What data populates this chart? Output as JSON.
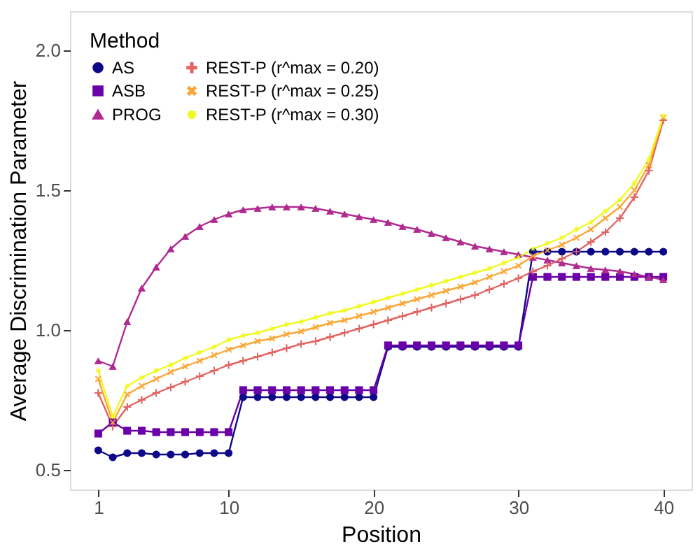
{
  "chart_data": {
    "type": "line",
    "xlabel": "Position",
    "ylabel": "Average Discrimination Parameter",
    "legend_title": "Method",
    "legend": "top left",
    "grid": false,
    "x": [
      1,
      2,
      3,
      4,
      5,
      6,
      7,
      8,
      9,
      10,
      11,
      12,
      13,
      14,
      15,
      16,
      17,
      18,
      19,
      20,
      21,
      22,
      23,
      24,
      25,
      26,
      27,
      28,
      29,
      30,
      31,
      32,
      33,
      34,
      35,
      36,
      37,
      38,
      39,
      40
    ],
    "xlim": [
      -0.95,
      41.95
    ],
    "xticks": [
      1,
      10,
      20,
      30,
      40
    ],
    "ylim": [
      0.43,
      2.14
    ],
    "yticks": [
      0.5,
      {
        "value": 1,
        "label": "1.0"
      },
      1.5,
      {
        "value": 2,
        "label": "2.0"
      }
    ],
    "series": [
      {
        "name": "AS",
        "color": "#0d0887",
        "marker": "circle",
        "values": [
          0.57,
          0.545,
          0.56,
          0.56,
          0.555,
          0.555,
          0.555,
          0.56,
          0.56,
          0.56,
          0.76,
          0.76,
          0.76,
          0.76,
          0.76,
          0.76,
          0.76,
          0.76,
          0.76,
          0.76,
          0.94,
          0.94,
          0.94,
          0.94,
          0.94,
          0.94,
          0.94,
          0.94,
          0.94,
          0.94,
          1.28,
          1.28,
          1.28,
          1.28,
          1.28,
          1.28,
          1.28,
          1.28,
          1.28,
          1.28
        ]
      },
      {
        "name": "ASB",
        "color": "#6a00a8",
        "marker": "square",
        "values": [
          0.63,
          0.67,
          0.64,
          0.64,
          0.635,
          0.635,
          0.635,
          0.635,
          0.635,
          0.635,
          0.785,
          0.785,
          0.785,
          0.785,
          0.785,
          0.785,
          0.785,
          0.785,
          0.785,
          0.785,
          0.945,
          0.945,
          0.945,
          0.945,
          0.945,
          0.945,
          0.945,
          0.945,
          0.945,
          0.945,
          1.19,
          1.19,
          1.19,
          1.19,
          1.19,
          1.19,
          1.19,
          1.19,
          1.19,
          1.19
        ]
      },
      {
        "name": "PROG",
        "color": "#b12a90",
        "marker": "triangle",
        "values": [
          0.89,
          0.87,
          1.03,
          1.15,
          1.225,
          1.29,
          1.335,
          1.37,
          1.395,
          1.415,
          1.43,
          1.435,
          1.44,
          1.44,
          1.44,
          1.435,
          1.425,
          1.415,
          1.405,
          1.395,
          1.385,
          1.37,
          1.36,
          1.345,
          1.33,
          1.315,
          1.3,
          1.29,
          1.28,
          1.27,
          1.26,
          1.25,
          1.24,
          1.23,
          1.22,
          1.215,
          1.21,
          1.2,
          1.19,
          1.18
        ]
      },
      {
        "name": "REST-P (r^max = 0.20)",
        "color": "#e16462",
        "marker": "cross",
        "values": [
          0.775,
          0.655,
          0.725,
          0.75,
          0.775,
          0.795,
          0.815,
          0.835,
          0.855,
          0.875,
          0.89,
          0.905,
          0.92,
          0.935,
          0.95,
          0.96,
          0.975,
          0.99,
          1.005,
          1.02,
          1.035,
          1.05,
          1.065,
          1.08,
          1.095,
          1.11,
          1.125,
          1.145,
          1.165,
          1.185,
          1.21,
          1.23,
          1.255,
          1.28,
          1.315,
          1.35,
          1.4,
          1.475,
          1.57,
          1.75
        ]
      },
      {
        "name": "REST-P (r^max = 0.25)",
        "color": "#fca636",
        "marker": "x",
        "values": [
          0.825,
          0.67,
          0.77,
          0.8,
          0.825,
          0.85,
          0.87,
          0.89,
          0.91,
          0.93,
          0.945,
          0.96,
          0.97,
          0.985,
          0.995,
          1.01,
          1.025,
          1.035,
          1.05,
          1.065,
          1.08,
          1.095,
          1.11,
          1.125,
          1.14,
          1.155,
          1.17,
          1.19,
          1.21,
          1.23,
          1.265,
          1.285,
          1.305,
          1.33,
          1.36,
          1.4,
          1.44,
          1.5,
          1.59,
          1.76
        ]
      },
      {
        "name": "REST-P (r^max = 0.30)",
        "color": "#f0f921",
        "marker": "star",
        "values": [
          0.855,
          0.69,
          0.8,
          0.83,
          0.855,
          0.875,
          0.9,
          0.92,
          0.94,
          0.965,
          0.98,
          0.99,
          1.005,
          1.02,
          1.03,
          1.045,
          1.06,
          1.07,
          1.085,
          1.1,
          1.115,
          1.13,
          1.145,
          1.16,
          1.175,
          1.19,
          1.205,
          1.22,
          1.24,
          1.26,
          1.29,
          1.31,
          1.33,
          1.36,
          1.385,
          1.425,
          1.465,
          1.525,
          1.61,
          1.765
        ]
      }
    ]
  }
}
